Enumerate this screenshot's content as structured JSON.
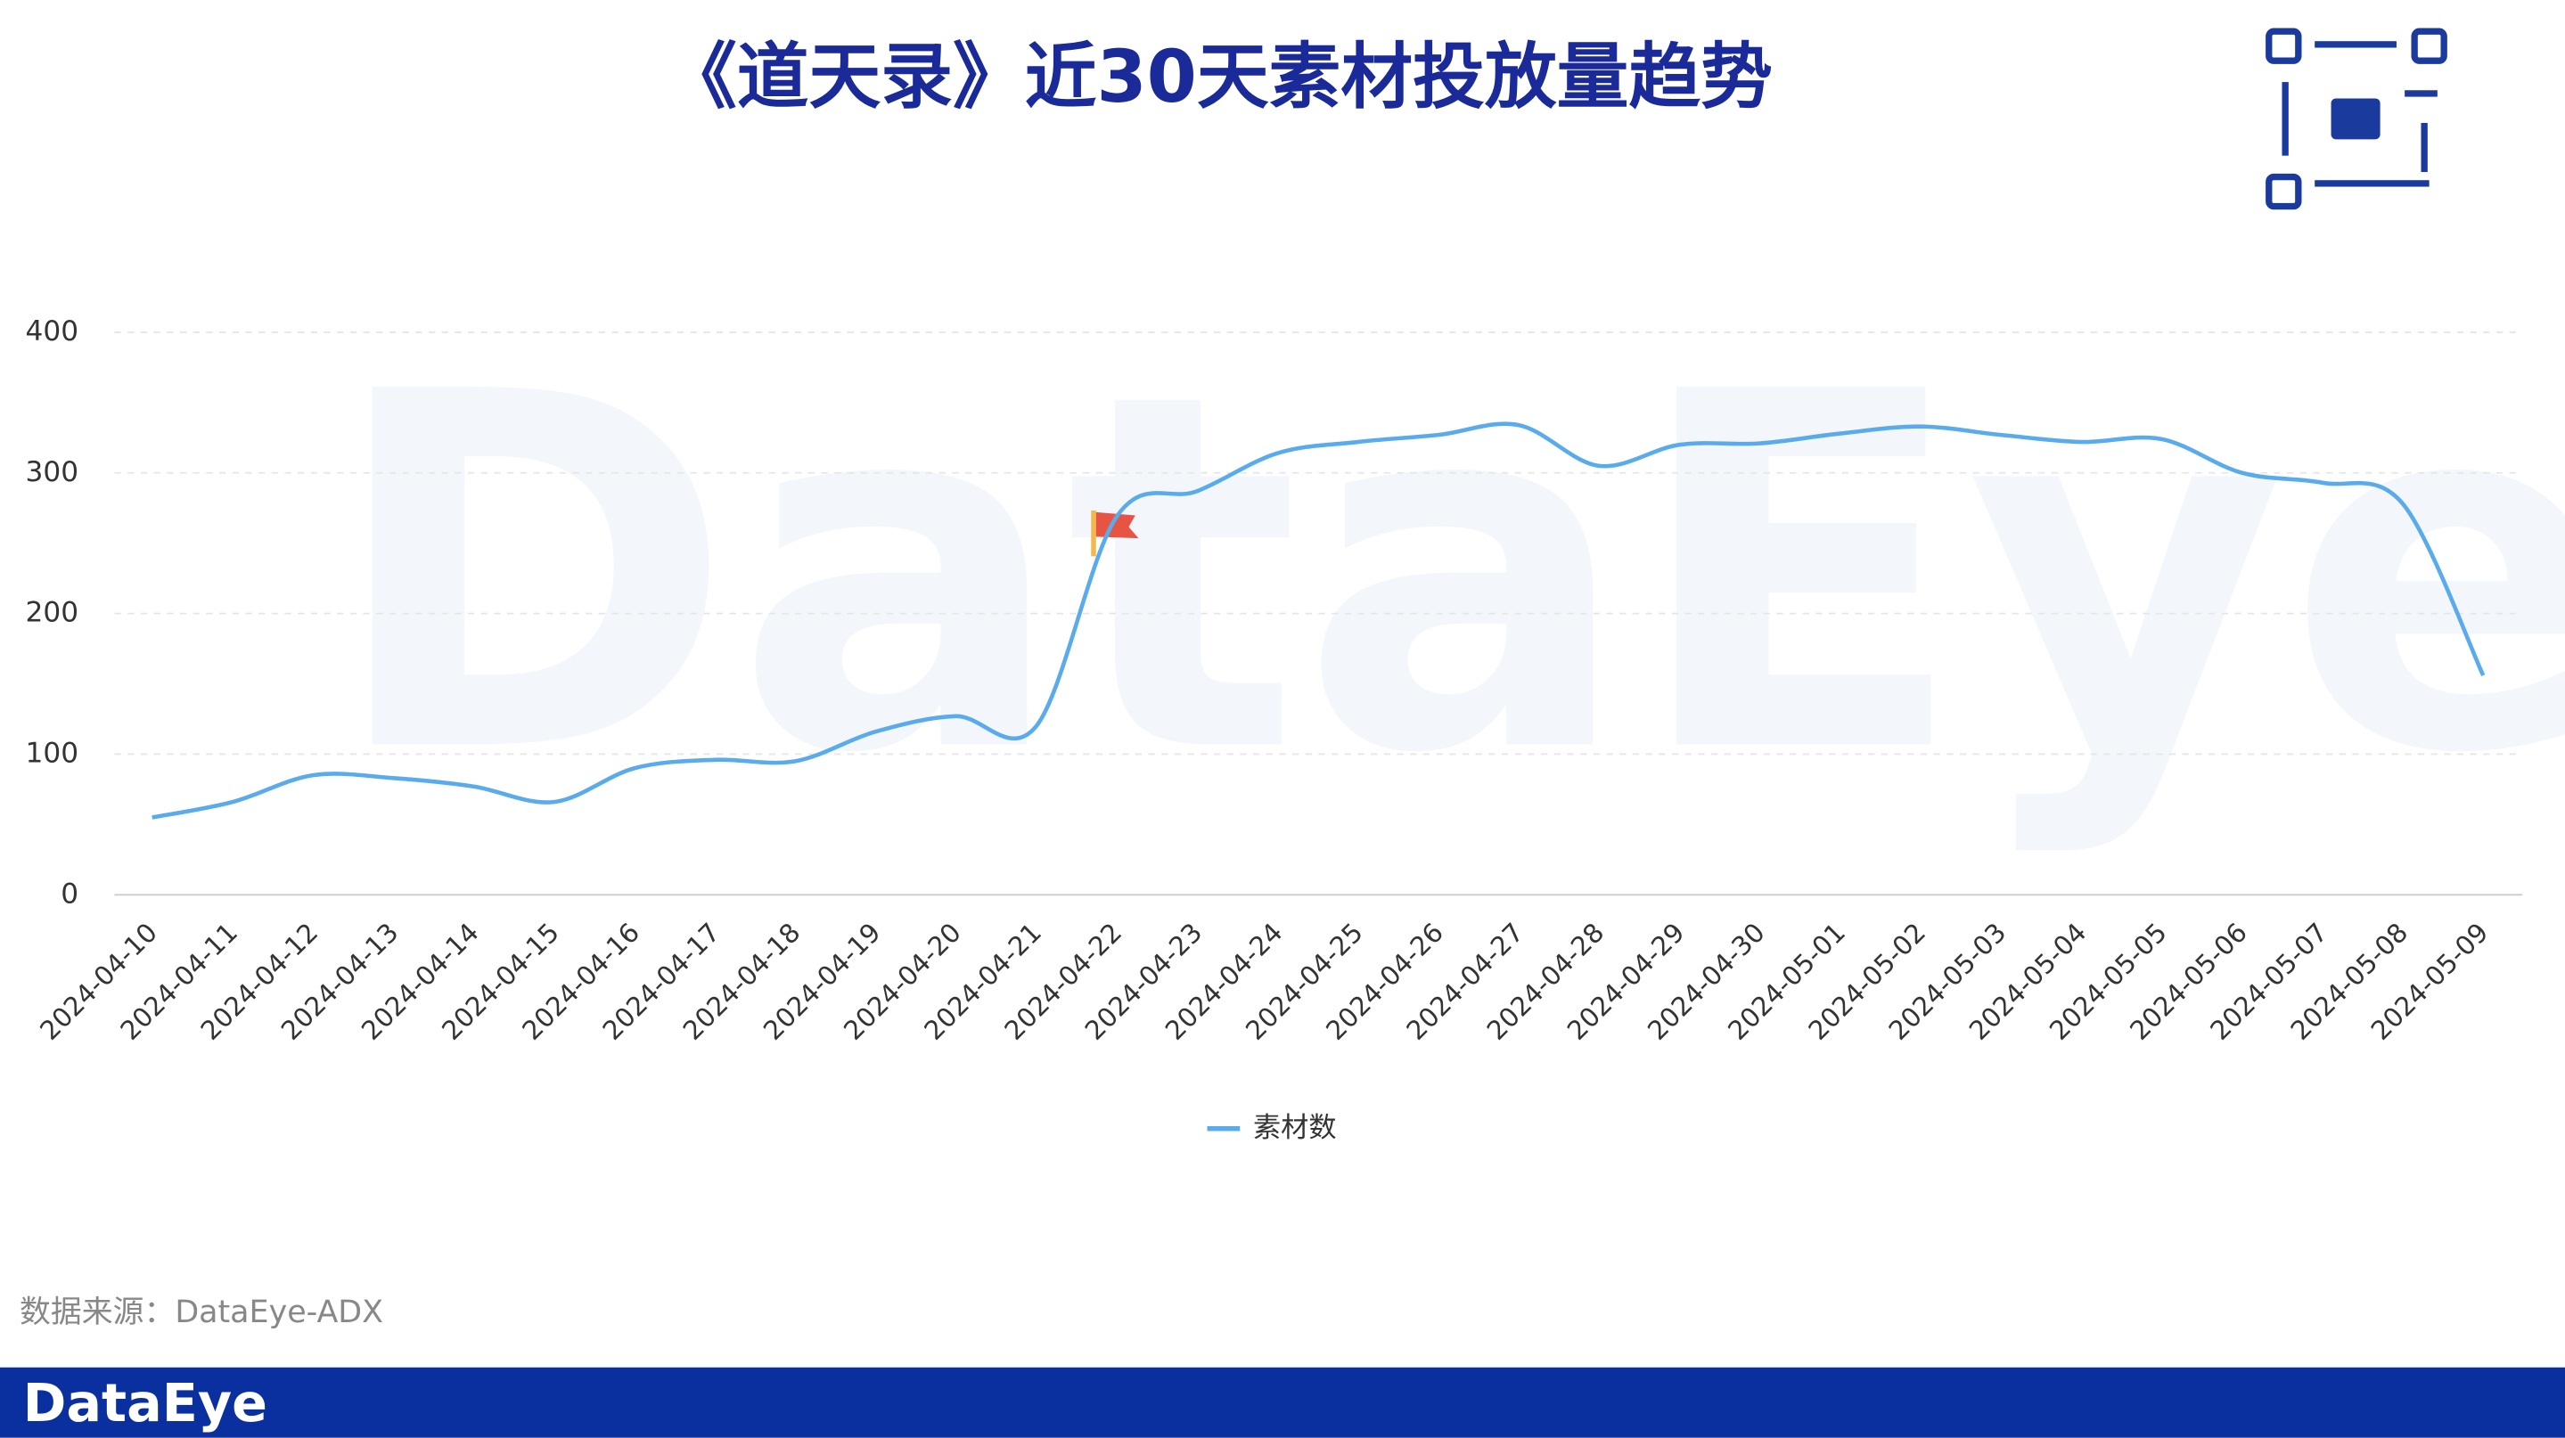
{
  "chart_data": {
    "type": "line",
    "title": "《道天录》近30天素材投放量趋势",
    "watermark": "DataEye",
    "source": "数据来源：DataEye-ADX",
    "brand": "DataEye",
    "categories": [
      "2024-04-10",
      "2024-04-11",
      "2024-04-12",
      "2024-04-13",
      "2024-04-14",
      "2024-04-15",
      "2024-04-16",
      "2024-04-17",
      "2024-04-18",
      "2024-04-19",
      "2024-04-20",
      "2024-04-21",
      "2024-04-22",
      "2024-04-23",
      "2024-04-24",
      "2024-04-25",
      "2024-04-26",
      "2024-04-27",
      "2024-04-28",
      "2024-04-29",
      "2024-04-30",
      "2024-05-01",
      "2024-05-02",
      "2024-05-03",
      "2024-05-04",
      "2024-05-05",
      "2024-05-06",
      "2024-05-07",
      "2024-05-08",
      "2024-05-09"
    ],
    "series": [
      {
        "name": "素材数",
        "color": "#5aabeb",
        "values": [
          55,
          66,
          85,
          83,
          77,
          66,
          90,
          96,
          95,
          116,
          127,
          120,
          269,
          287,
          314,
          322,
          327,
          334,
          305,
          320,
          321,
          328,
          333,
          327,
          322,
          324,
          300,
          293,
          278,
          156
        ]
      }
    ],
    "ylim": [
      0,
      400
    ],
    "yticks": [
      0,
      100,
      200,
      300,
      400
    ],
    "grid": true,
    "legend": "bottom"
  }
}
